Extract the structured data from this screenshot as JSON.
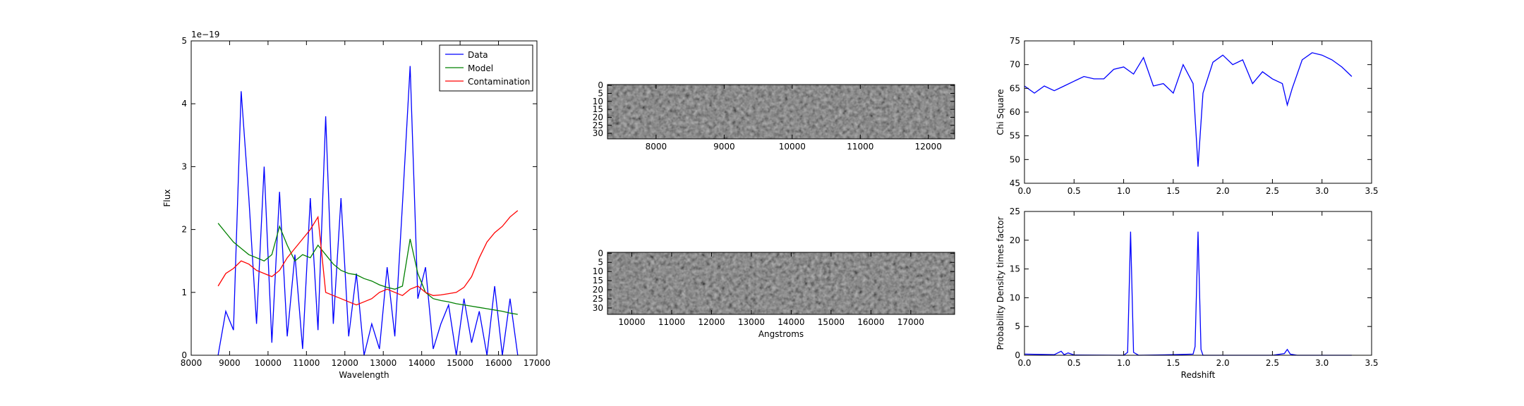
{
  "chart_data": [
    {
      "type": "line",
      "xlabel": "Wavelength",
      "ylabel": "Flux",
      "offset_label": "1e−19",
      "x": [
        8700,
        8900,
        9100,
        9300,
        9500,
        9700,
        9900,
        10100,
        10300,
        10500,
        10700,
        10900,
        11100,
        11300,
        11500,
        11700,
        11900,
        12100,
        12300,
        12500,
        12700,
        12900,
        13100,
        13300,
        13500,
        13700,
        13900,
        14100,
        14300,
        14500,
        14700,
        14900,
        15100,
        15300,
        15500,
        15700,
        15900,
        16100,
        16300,
        16500
      ],
      "series": [
        {
          "name": "Data",
          "color": "#0000ff",
          "values": [
            0,
            0.7,
            0.4,
            4.2,
            2.5,
            0.5,
            3.0,
            0.2,
            2.6,
            0.3,
            1.6,
            0.1,
            2.5,
            0.4,
            3.8,
            0.5,
            2.5,
            0.3,
            1.3,
            0,
            0.5,
            0.1,
            1.4,
            0.3,
            2.4,
            4.6,
            0.9,
            1.4,
            0.1,
            0.5,
            0.8,
            0,
            0.9,
            0.2,
            0.7,
            0,
            1.1,
            0,
            0.9,
            0
          ]
        },
        {
          "name": "Model",
          "color": "#008000",
          "values": [
            2.1,
            1.95,
            1.8,
            1.7,
            1.6,
            1.55,
            1.5,
            1.6,
            2.05,
            1.75,
            1.5,
            1.6,
            1.55,
            1.75,
            1.6,
            1.45,
            1.35,
            1.3,
            1.28,
            1.22,
            1.18,
            1.12,
            1.08,
            1.05,
            1.1,
            1.85,
            1.3,
            1.0,
            0.9,
            0.87,
            0.85,
            0.82,
            0.8,
            0.78,
            0.76,
            0.74,
            0.72,
            0.7,
            0.67,
            0.65
          ]
        },
        {
          "name": "Contamination",
          "color": "#ff0000",
          "values": [
            1.1,
            1.3,
            1.38,
            1.5,
            1.45,
            1.35,
            1.3,
            1.25,
            1.35,
            1.55,
            1.7,
            1.85,
            2.0,
            2.2,
            1.0,
            0.95,
            0.9,
            0.85,
            0.8,
            0.85,
            0.9,
            1.0,
            1.05,
            1.0,
            0.95,
            1.05,
            1.1,
            1.0,
            0.95,
            0.96,
            0.98,
            1.0,
            1.08,
            1.25,
            1.55,
            1.8,
            1.95,
            2.05,
            2.2,
            2.3
          ]
        }
      ],
      "xlim": [
        8000,
        17000
      ],
      "xticks": [
        8000,
        9000,
        10000,
        11000,
        12000,
        13000,
        14000,
        15000,
        16000,
        17000
      ],
      "ylim": [
        0,
        5
      ],
      "yticks": [
        0,
        1,
        2,
        3,
        4,
        5
      ],
      "legend": "upper right"
    },
    {
      "type": "image",
      "xlim": [
        7286,
        12386
      ],
      "xticks": [
        8000,
        9000,
        10000,
        11000,
        12000
      ],
      "ylim": [
        33.5,
        -0.5
      ],
      "yticks": [
        0,
        5,
        10,
        15,
        20,
        25,
        30
      ]
    },
    {
      "type": "image",
      "xlabel": "Angstroms",
      "xlim": [
        9390,
        18100
      ],
      "xticks": [
        10000,
        11000,
        12000,
        13000,
        14000,
        15000,
        16000,
        17000
      ],
      "ylim": [
        33.5,
        -0.5
      ],
      "yticks": [
        0,
        5,
        10,
        15,
        20,
        25,
        30
      ]
    },
    {
      "type": "line",
      "ylabel": "Chi Square",
      "x": [
        0,
        0.1,
        0.2,
        0.3,
        0.4,
        0.5,
        0.6,
        0.7,
        0.8,
        0.9,
        1.0,
        1.1,
        1.2,
        1.3,
        1.4,
        1.5,
        1.6,
        1.7,
        1.75,
        1.8,
        1.9,
        2.0,
        2.1,
        2.2,
        2.3,
        2.4,
        2.5,
        2.6,
        2.65,
        2.7,
        2.8,
        2.9,
        3.0,
        3.1,
        3.2,
        3.3
      ],
      "series": [
        {
          "color": "#0000ff",
          "values": [
            65.5,
            64,
            65.5,
            64.5,
            65.5,
            66.5,
            67.5,
            67,
            67,
            69,
            69.5,
            68,
            71.5,
            65.5,
            66,
            64,
            70,
            66,
            48.5,
            64,
            70.5,
            72,
            70,
            71,
            66,
            68.5,
            67,
            66,
            61.5,
            65,
            71,
            72.5,
            72,
            71,
            69.5,
            67.5
          ]
        }
      ],
      "xlim": [
        0,
        3.5
      ],
      "xticks": [
        {
          "value": 0,
          "label": "0.0"
        },
        0.5,
        {
          "value": 1,
          "label": "1.0"
        },
        1.5,
        {
          "value": 2,
          "label": "2.0"
        },
        2.5,
        {
          "value": 3,
          "label": "3.0"
        },
        3.5
      ],
      "ylim": [
        45,
        75
      ],
      "yticks": [
        45,
        50,
        55,
        60,
        65,
        70,
        75
      ]
    },
    {
      "type": "line",
      "xlabel": "Redshift",
      "ylabel": "Probability Density times factor",
      "x": [
        0,
        0.3,
        0.37,
        0.4,
        0.44,
        0.5,
        1.0,
        1.04,
        1.07,
        1.1,
        1.15,
        1.5,
        1.7,
        1.72,
        1.75,
        1.78,
        1.8,
        2.5,
        2.62,
        2.65,
        2.68,
        2.75,
        3.3
      ],
      "series": [
        {
          "color": "#0000ff",
          "values": [
            0.2,
            0.1,
            0.7,
            0.1,
            0.4,
            0.05,
            0,
            0.5,
            21.5,
            0.5,
            0,
            0.1,
            0.2,
            1.5,
            21.5,
            1.0,
            0,
            0,
            0.3,
            1.0,
            0.2,
            0,
            0
          ]
        }
      ],
      "xlim": [
        0,
        3.5
      ],
      "xticks": [
        {
          "value": 0,
          "label": "0.0"
        },
        0.5,
        {
          "value": 1,
          "label": "1.0"
        },
        1.5,
        {
          "value": 2,
          "label": "2.0"
        },
        2.5,
        {
          "value": 3,
          "label": "3.0"
        },
        3.5
      ],
      "ylim": [
        0,
        25
      ],
      "yticks": [
        0,
        5,
        10,
        15,
        20,
        25
      ]
    }
  ]
}
